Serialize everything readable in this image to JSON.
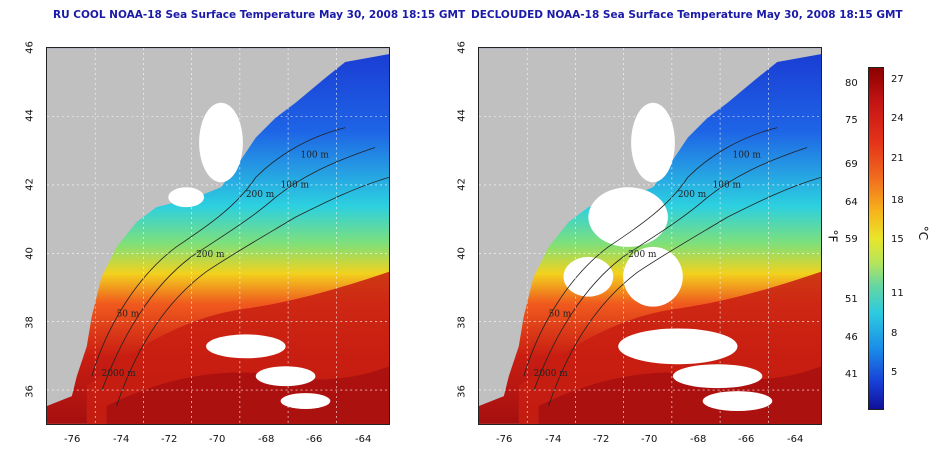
{
  "panels": [
    {
      "title": "RU COOL NOAA-18 Sea Surface Temperature May 30, 2008 18:15 GMT",
      "variant": "cool"
    },
    {
      "title": "DECLOUDED NOAA-18 Sea Surface Temperature May 30, 2008 18:15 GMT",
      "variant": "declouded"
    }
  ],
  "axes": {
    "x_ticks": [
      "-76",
      "-74",
      "-72",
      "-70",
      "-68",
      "-66",
      "-64"
    ],
    "y_ticks": [
      "46",
      "44",
      "42",
      "40",
      "38",
      "36"
    ]
  },
  "contour_labels": [
    "100 m",
    "100 m",
    "200 m",
    "200 m",
    "2000 m",
    "50 m"
  ],
  "colorbar": {
    "fahrenheit_unit": "°F",
    "celsius_unit": "°C",
    "fahrenheit_ticks": [
      "80",
      "75",
      "69",
      "64",
      "59",
      "51",
      "46",
      "41"
    ],
    "celsius_ticks": [
      "27",
      "24",
      "21",
      "18",
      "15",
      "11",
      "8",
      "5"
    ]
  },
  "colors": {
    "land": "#c0c0c0",
    "cloud": "#ffffff",
    "title": "#1a1aa8",
    "warm": "#c81e12",
    "hot": "#a50f0f",
    "orange": "#f05a1e",
    "yellow": "#f2d21e",
    "green": "#7fe07a",
    "cyan": "#2cd0e0",
    "blue": "#1e64e6",
    "deepblue": "#1a3ad2"
  }
}
